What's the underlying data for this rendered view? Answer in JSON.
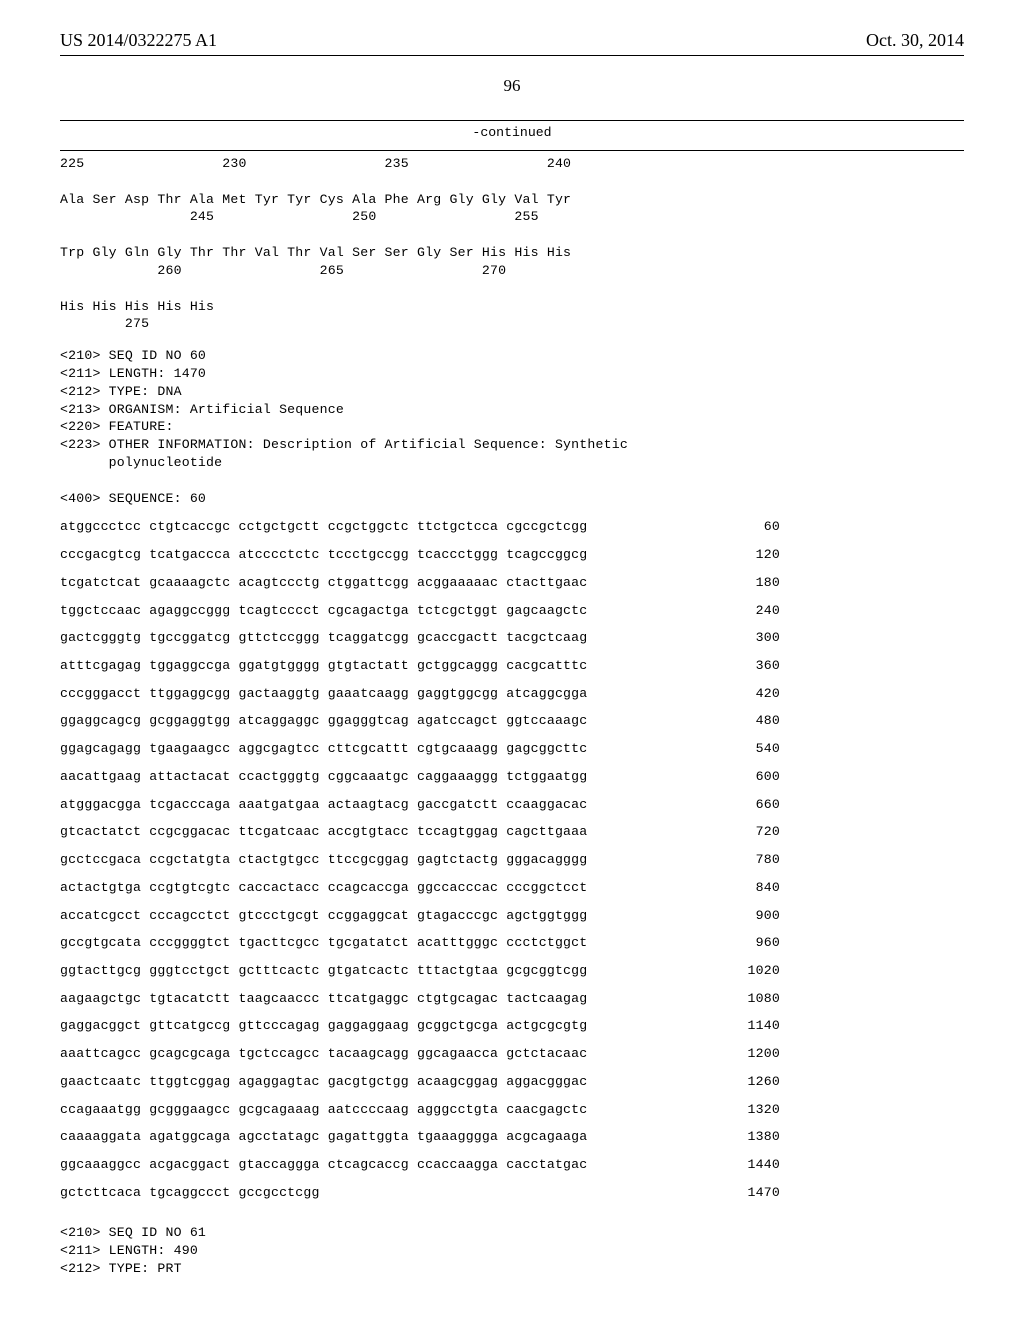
{
  "header": {
    "left": "US 2014/0322275 A1",
    "right": "Oct. 30, 2014"
  },
  "page_number": "96",
  "continued_label": "-continued",
  "protein_block": "225                 230                 235                 240\n\nAla Ser Asp Thr Ala Met Tyr Tyr Cys Ala Phe Arg Gly Gly Val Tyr\n                245                 250                 255\n\nTrp Gly Gln Gly Thr Thr Val Thr Val Ser Ser Gly Ser His His His\n            260                 265                 270\n\nHis His His His His\n        275",
  "seq_header": "<210> SEQ ID NO 60\n<211> LENGTH: 1470\n<212> TYPE: DNA\n<213> ORGANISM: Artificial Sequence\n<220> FEATURE:\n<223> OTHER INFORMATION: Description of Artificial Sequence: Synthetic\n      polynucleotide\n\n<400> SEQUENCE: 60",
  "sequence": [
    {
      "s": "atggccctcc ctgtcaccgc cctgctgctt ccgctggctc ttctgctcca cgccgctcgg",
      "n": "60"
    },
    {
      "s": "cccgacgtcg tcatgaccca atcccctctc tccctgccgg tcaccctggg tcagccggcg",
      "n": "120"
    },
    {
      "s": "tcgatctcat gcaaaagctc acagtccctg ctggattcgg acggaaaaac ctacttgaac",
      "n": "180"
    },
    {
      "s": "tggctccaac agaggccggg tcagtcccct cgcagactga tctcgctggt gagcaagctc",
      "n": "240"
    },
    {
      "s": "gactcgggtg tgccggatcg gttctccggg tcaggatcgg gcaccgactt tacgctcaag",
      "n": "300"
    },
    {
      "s": "atttcgagag tggaggccga ggatgtgggg gtgtactatt gctggcaggg cacgcatttc",
      "n": "360"
    },
    {
      "s": "cccgggacct ttggaggcgg gactaaggtg gaaatcaagg gaggtggcgg atcaggcgga",
      "n": "420"
    },
    {
      "s": "ggaggcagcg gcggaggtgg atcaggaggc ggagggtcag agatccagct ggtccaaagc",
      "n": "480"
    },
    {
      "s": "ggagcagagg tgaagaagcc aggcgagtcc cttcgcattt cgtgcaaagg gagcggcttc",
      "n": "540"
    },
    {
      "s": "aacattgaag attactacat ccactgggtg cggcaaatgc caggaaaggg tctggaatgg",
      "n": "600"
    },
    {
      "s": "atgggacgga tcgacccaga aaatgatgaa actaagtacg gaccgatctt ccaaggacac",
      "n": "660"
    },
    {
      "s": "gtcactatct ccgcggacac ttcgatcaac accgtgtacc tccagtggag cagcttgaaa",
      "n": "720"
    },
    {
      "s": "gcctccgaca ccgctatgta ctactgtgcc ttccgcggag gagtctactg gggacagggg",
      "n": "780"
    },
    {
      "s": "actactgtga ccgtgtcgtc caccactacc ccagcaccga ggccacccac cccggctcct",
      "n": "840"
    },
    {
      "s": "accatcgcct cccagcctct gtccctgcgt ccggaggcat gtagacccgc agctggtggg",
      "n": "900"
    },
    {
      "s": "gccgtgcata cccggggtct tgacttcgcc tgcgatatct acatttgggc ccctctggct",
      "n": "960"
    },
    {
      "s": "ggtacttgcg gggtcctgct gctttcactc gtgatcactc tttactgtaa gcgcggtcgg",
      "n": "1020"
    },
    {
      "s": "aagaagctgc tgtacatctt taagcaaccc ttcatgaggc ctgtgcagac tactcaagag",
      "n": "1080"
    },
    {
      "s": "gaggacggct gttcatgccg gttcccagag gaggaggaag gcggctgcga actgcgcgtg",
      "n": "1140"
    },
    {
      "s": "aaattcagcc gcagcgcaga tgctccagcc tacaagcagg ggcagaacca gctctacaac",
      "n": "1200"
    },
    {
      "s": "gaactcaatc ttggtcggag agaggagtac gacgtgctgg acaagcggag aggacgggac",
      "n": "1260"
    },
    {
      "s": "ccagaaatgg gcgggaagcc gcgcagaaag aatccccaag agggcctgta caacgagctc",
      "n": "1320"
    },
    {
      "s": "caaaaggata agatggcaga agcctatagc gagattggta tgaaagggga acgcagaaga",
      "n": "1380"
    },
    {
      "s": "ggcaaaggcc acgacggact gtaccaggga ctcagcaccg ccaccaagga cacctatgac",
      "n": "1440"
    },
    {
      "s": "gctcttcaca tgcaggccct gccgcctcgg",
      "n": "1470"
    }
  ],
  "footer_block": "<210> SEQ ID NO 61\n<211> LENGTH: 490\n<212> TYPE: PRT"
}
